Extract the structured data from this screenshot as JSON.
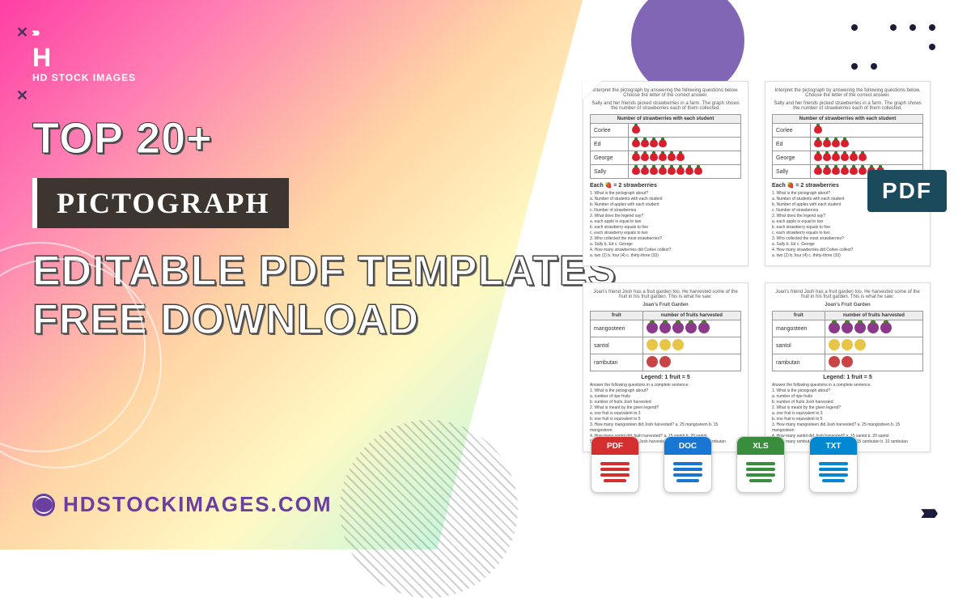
{
  "brand": {
    "logo_letter": "H",
    "name": "HD STOCK IMAGES",
    "url": "HDSTOCKIMAGES.COM"
  },
  "headline": {
    "top": "TOP 20+",
    "badge": "PICTOGRAPH",
    "line1": "EDITABLE PDF TEMPLATES",
    "line2": "FREE DOWNLOAD"
  },
  "pdf_badge": "PDF",
  "file_types": [
    {
      "label": "PDF",
      "cls": "pdf-i"
    },
    {
      "label": "DOC",
      "cls": "doc-i"
    },
    {
      "label": "XLS",
      "cls": "xls-i"
    },
    {
      "label": "TXT",
      "cls": "txt-i"
    }
  ],
  "colors": {
    "gradient_start": "#ff3fa4",
    "gradient_end": "#a8e6cf",
    "badge_bg": "#3d3530",
    "pdf_badge_bg": "#1a4a5c",
    "url_color": "#6b3fa0",
    "dark": "#1a1a3a"
  },
  "worksheet_strawberry": {
    "intro": "Interpret the pictograph by answering the following questions below. Choose the letter of the correct answer.",
    "subintro": "Sally and her friends picked strawberries in a farm. The graph shows the number of strawberries each of them collected.",
    "table_title": "Number of strawberries with each student",
    "rows": [
      {
        "name": "Corlee",
        "count": 1
      },
      {
        "name": "Ed",
        "count": 4
      },
      {
        "name": "George",
        "count": 6
      },
      {
        "name": "Sally",
        "count": 8
      }
    ],
    "legend": "Each 🍓 = 2 strawberries",
    "questions": "1. What is the pictograph about?\n  a. Number of students with each student\n  b. Number of apples with each student\n  c. Number of strawberries\n2. What does the legend say?\n  a. each apple is equal to two\n  b. each strawberry equals to five\n  c. each strawberry equals to two\n3. Who collected the most strawberries?\n  a. Sally   b. Ed   c. George\n4. How many strawberries did Corlee collect?\n  a. two (2)   b. four (4)   c. thirty-three (33)"
  },
  "worksheet_fruit": {
    "title": "Joan's Fruit Garden",
    "intro": "Joan's friend Josh has a fruit garden too. He harvested some of the fruit in his fruit garden. This is what he saw:",
    "columns": [
      "fruit",
      "number of fruits harvested"
    ],
    "rows": [
      {
        "name": "mangosteen",
        "type": "purple",
        "count": 5
      },
      {
        "name": "santol",
        "type": "yellow",
        "count": 3
      },
      {
        "name": "rambutan",
        "type": "red",
        "count": 2
      }
    ],
    "legend": "Legend: 1 fruit = 5",
    "questions": "Answer the following questions in a complete sentence.\n1. What is the pictograph about?\n  a. number of ripe fruits\n  b. number of fruits Josh harvested\n2. What is meant by the given legend?\n  a. one fruit is equivalent to 3\n  b. one fruit is equivalent to 5\n3. How many mangosteen did Josh harvested?   a. 25 mangosteen   b. 15 mangosteen\n4. How many santol did Josh harvested?   a. 15 santol   b. 20 santol\n5. How many rambutan did Josh harvested?   a. 15 rambutan   b. 10 rambutan"
  }
}
